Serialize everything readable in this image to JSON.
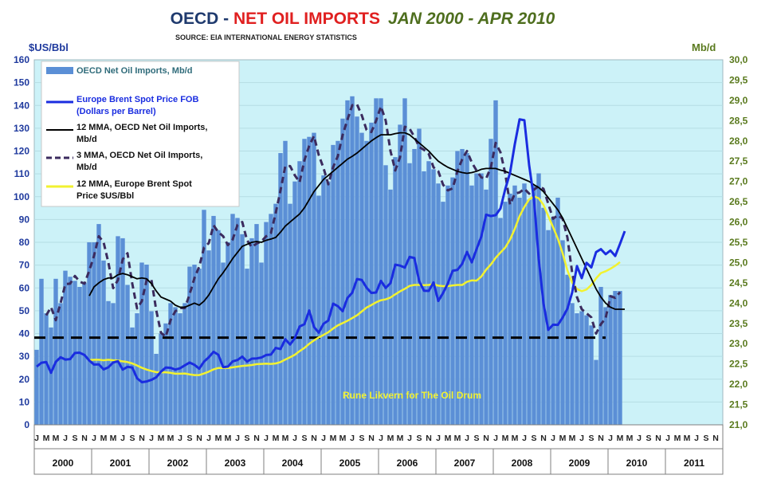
{
  "title": {
    "part1": "OECD",
    "sep": " - ",
    "part2": "NET OIL IMPORTS",
    "part3": "JAN 2000 - APR 2010",
    "source": "SOURCE: EIA INTERNATIONAL ENERGY STATISTICS",
    "color1": "#1f3a6e",
    "color2": "#e02020",
    "color3": "#4e6e1e"
  },
  "credit": "Rune Likvern for The Oil Drum",
  "chart_data": {
    "type": "bar",
    "x_start": "2000-01",
    "x_end": "2011-12",
    "years": [
      "2000",
      "2001",
      "2002",
      "2003",
      "2004",
      "2005",
      "2006",
      "2007",
      "2008",
      "2009",
      "2010",
      "2011"
    ],
    "month_letters": [
      "J",
      "F",
      "M",
      "A",
      "M",
      "J",
      "J",
      "A",
      "S",
      "O",
      "N",
      "D"
    ],
    "y_left": {
      "label": "$US/Bbl",
      "min": 0,
      "max": 160,
      "ticks": [
        "0",
        "10",
        "20",
        "30",
        "40",
        "50",
        "60",
        "70",
        "80",
        "90",
        "100",
        "110",
        "120",
        "130",
        "140",
        "150",
        "160"
      ]
    },
    "y_right": {
      "label": "Mb/d",
      "min": 21.0,
      "max": 30.0,
      "ticks": [
        "21,0",
        "21,5",
        "22,0",
        "22,5",
        "23,0",
        "23,5",
        "24,0",
        "24,5",
        "25,0",
        "25,5",
        "26,0",
        "26,5",
        "27,0",
        "27,5",
        "28,0",
        "28,5",
        "29,0",
        "29,5",
        "30,0"
      ]
    },
    "colors": {
      "plot_bg": "#ccf2f8",
      "bars": "#5b8fd6",
      "brent": "#1a2de0",
      "mma12_imports": "#000000",
      "mma3_imports": "#3b2b5e",
      "mma12_brent": "#f2f230",
      "reference": "#000000",
      "left_axis": "#1f3a9e",
      "right_axis": "#5a7a1e"
    },
    "reference_line": {
      "value_mbd": 23.15,
      "from": "2000-01",
      "to": "2009-12"
    },
    "series": [
      {
        "name": "OECD Net Oil Imports, Mb/d",
        "axis": "right",
        "kind": "bar",
        "values": [
          22.85,
          24.6,
          23.75,
          23.4,
          24.6,
          24.0,
          24.8,
          24.65,
          24.55,
          24.4,
          24.5,
          25.5,
          25.5,
          25.95,
          25.05,
          24.05,
          24.0,
          25.65,
          25.6,
          24.45,
          23.4,
          23.75,
          25.0,
          24.95,
          23.8,
          22.75,
          23.25,
          23.5,
          24.0,
          23.9,
          23.75,
          24.0,
          24.9,
          24.95,
          24.85,
          26.3,
          25.3,
          26.15,
          25.8,
          25.0,
          25.5,
          26.2,
          26.1,
          25.7,
          24.85,
          25.6,
          25.95,
          25.0,
          26.0,
          26.2,
          26.45,
          27.7,
          28.0,
          26.45,
          27.0,
          27.5,
          28.05,
          28.1,
          28.2,
          26.65,
          27.15,
          27.0,
          27.9,
          28.0,
          28.55,
          29.0,
          29.1,
          28.6,
          28.2,
          28.0,
          28.45,
          29.05,
          29.05,
          27.4,
          26.8,
          27.6,
          28.4,
          29.05,
          27.45,
          27.8,
          28.3,
          27.25,
          27.5,
          27.3,
          26.95,
          26.5,
          26.9,
          27.1,
          27.75,
          27.8,
          27.7,
          26.9,
          27.2,
          27.2,
          26.8,
          28.05,
          29.0,
          26.1,
          26.5,
          26.7,
          26.9,
          26.6,
          26.95,
          26.55,
          26.9,
          27.2,
          26.35,
          25.8,
          26.1,
          26.6,
          25.55,
          24.7,
          24.0,
          23.75,
          23.8,
          23.7,
          23.45,
          22.6,
          24.4,
          23.9,
          24.2,
          24.3,
          24.3
        ]
      },
      {
        "name": "Europe Brent Spot Price FOB (Dollars per Barrel)",
        "axis": "left",
        "kind": "line",
        "values": [
          25.5,
          27.2,
          27.5,
          22.8,
          27.6,
          29.6,
          28.6,
          28.8,
          31.5,
          31.6,
          30.6,
          28.2,
          26.4,
          26.5,
          24.3,
          25.2,
          27.3,
          27.9,
          24.2,
          25.4,
          25.1,
          20.4,
          18.7,
          19.0,
          19.7,
          20.8,
          23.3,
          25.1,
          25.0,
          24.2,
          24.8,
          26.1,
          27.3,
          26.3,
          24.6,
          27.7,
          29.6,
          32.0,
          30.7,
          25.3,
          25.5,
          27.8,
          28.4,
          29.9,
          27.7,
          29.0,
          29.1,
          29.5,
          30.6,
          30.8,
          33.7,
          33.2,
          37.5,
          35.2,
          38.0,
          43.1,
          44.1,
          50.1,
          42.9,
          40.4,
          44.3,
          45.7,
          53.1,
          52.0,
          49.8,
          55.6,
          57.9,
          63.9,
          63.5,
          60.1,
          57.8,
          58.0,
          63.1,
          60.0,
          62.1,
          70.2,
          69.8,
          68.9,
          73.6,
          73.1,
          63.0,
          58.8,
          58.7,
          62.4,
          54.3,
          57.8,
          62.0,
          67.5,
          67.9,
          70.6,
          75.8,
          71.2,
          77.0,
          82.5,
          92.1,
          91.5,
          91.9,
          94.8,
          103.3,
          110.4,
          123.0,
          133.9,
          133.5,
          113.8,
          99.1,
          72.8,
          53.2,
          41.6,
          43.9,
          43.8,
          47.0,
          50.9,
          58.0,
          69.6,
          64.3,
          71.0,
          69.0,
          75.7,
          77.0,
          74.8,
          76.4,
          74.0,
          79.3,
          84.9
        ]
      },
      {
        "name": "12 MMA, OECD Net Oil Imports, Mb/d",
        "axis": "right",
        "kind": "line",
        "values": [
          null,
          null,
          null,
          null,
          null,
          null,
          null,
          null,
          null,
          null,
          null,
          24.18,
          24.4,
          24.5,
          24.58,
          24.62,
          24.62,
          24.7,
          24.73,
          24.7,
          24.65,
          24.6,
          24.62,
          24.6,
          24.48,
          24.3,
          24.15,
          24.1,
          24.05,
          23.95,
          23.9,
          23.9,
          23.95,
          24.0,
          23.95,
          24.05,
          24.2,
          24.4,
          24.6,
          24.75,
          24.92,
          25.1,
          25.25,
          25.4,
          25.45,
          25.5,
          25.52,
          25.5,
          25.55,
          25.58,
          25.62,
          25.75,
          25.9,
          26.0,
          26.1,
          26.2,
          26.35,
          26.55,
          26.75,
          26.9,
          27.05,
          27.15,
          27.25,
          27.35,
          27.45,
          27.55,
          27.62,
          27.7,
          27.8,
          27.9,
          28.0,
          28.08,
          28.15,
          28.15,
          28.15,
          28.18,
          28.2,
          28.2,
          28.15,
          28.05,
          27.95,
          27.85,
          27.75,
          27.62,
          27.5,
          27.42,
          27.35,
          27.3,
          27.25,
          27.22,
          27.2,
          27.22,
          27.25,
          27.3,
          27.32,
          27.32,
          27.32,
          27.28,
          27.25,
          27.2,
          27.15,
          27.1,
          27.05,
          27.0,
          26.92,
          26.85,
          26.75,
          26.6,
          26.45,
          26.3,
          26.1,
          25.85,
          25.6,
          25.35,
          25.1,
          24.85,
          24.6,
          24.35,
          24.15,
          24.0,
          23.9,
          23.85,
          23.85,
          23.85
        ]
      },
      {
        "name": "3 MMA, OECD Net Oil Imports, Mb/d",
        "axis": "right",
        "kind": "line",
        "values": [
          null,
          null,
          23.7,
          23.9,
          23.58,
          24.0,
          24.47,
          24.48,
          24.67,
          24.53,
          24.48,
          24.8,
          25.17,
          25.65,
          25.5,
          25.0,
          24.37,
          24.57,
          25.08,
          25.23,
          24.48,
          23.87,
          24.05,
          24.57,
          24.58,
          23.83,
          23.27,
          23.17,
          23.58,
          23.8,
          23.88,
          23.88,
          24.22,
          24.62,
          24.9,
          25.37,
          25.48,
          25.92,
          25.75,
          25.65,
          25.43,
          25.57,
          25.93,
          26.0,
          25.55,
          25.38,
          25.47,
          25.52,
          25.65,
          25.73,
          26.22,
          26.78,
          27.38,
          27.38,
          27.15,
          26.98,
          27.52,
          27.88,
          28.12,
          27.65,
          27.33,
          26.93,
          27.35,
          27.63,
          28.15,
          28.52,
          28.88,
          28.9,
          28.63,
          28.27,
          28.22,
          28.5,
          28.85,
          28.5,
          27.75,
          27.27,
          27.6,
          28.35,
          28.3,
          28.1,
          27.85,
          27.78,
          27.68,
          27.35,
          27.25,
          26.92,
          26.78,
          26.83,
          27.25,
          27.55,
          27.75,
          27.47,
          27.27,
          27.1,
          27.07,
          27.35,
          27.95,
          27.72,
          27.2,
          26.43,
          26.7,
          26.73,
          26.82,
          26.7,
          26.8,
          26.88,
          26.82,
          26.45,
          26.08,
          26.17,
          26.08,
          25.62,
          24.75,
          24.15,
          23.85,
          23.75,
          23.65,
          23.25,
          23.48,
          23.63,
          24.17,
          24.13,
          24.27
        ]
      },
      {
        "name": "12 MMA, Europe Brent Spot Price $US/Bbl",
        "axis": "left",
        "kind": "line",
        "values": [
          null,
          null,
          null,
          null,
          null,
          null,
          null,
          null,
          null,
          null,
          null,
          28.4,
          28.5,
          28.5,
          28.3,
          28.5,
          28.3,
          28.2,
          27.8,
          27.5,
          26.9,
          26.0,
          25.0,
          24.2,
          23.6,
          23.1,
          23.0,
          23.0,
          22.8,
          22.4,
          22.4,
          22.5,
          22.1,
          21.8,
          21.8,
          22.5,
          23.3,
          24.3,
          24.9,
          24.9,
          24.9,
          25.2,
          25.5,
          25.8,
          26.0,
          26.2,
          26.6,
          26.7,
          26.8,
          26.7,
          26.9,
          27.5,
          28.6,
          29.6,
          30.7,
          32.3,
          33.7,
          35.5,
          37.0,
          38.3,
          39.4,
          40.6,
          42.2,
          43.6,
          44.6,
          45.6,
          46.8,
          48.0,
          49.7,
          51.4,
          52.5,
          53.7,
          54.6,
          55.0,
          55.8,
          57.2,
          58.5,
          59.6,
          60.9,
          61.3,
          61.3,
          61.2,
          61.3,
          61.7,
          61.0,
          60.8,
          60.8,
          61.1,
          61.3,
          61.3,
          62.7,
          63.3,
          63.2,
          65.0,
          68.0,
          70.3,
          73.2,
          75.5,
          77.7,
          81.2,
          85.9,
          91.5,
          95.5,
          98.8,
          100.1,
          99.3,
          96.4,
          91.5,
          86.7,
          81.6,
          75.2,
          67.7,
          62.3,
          59.5,
          58.6,
          59.3,
          61.3,
          64.2,
          66.5,
          67.3,
          68.4,
          69.7,
          71.3
        ]
      }
    ]
  }
}
